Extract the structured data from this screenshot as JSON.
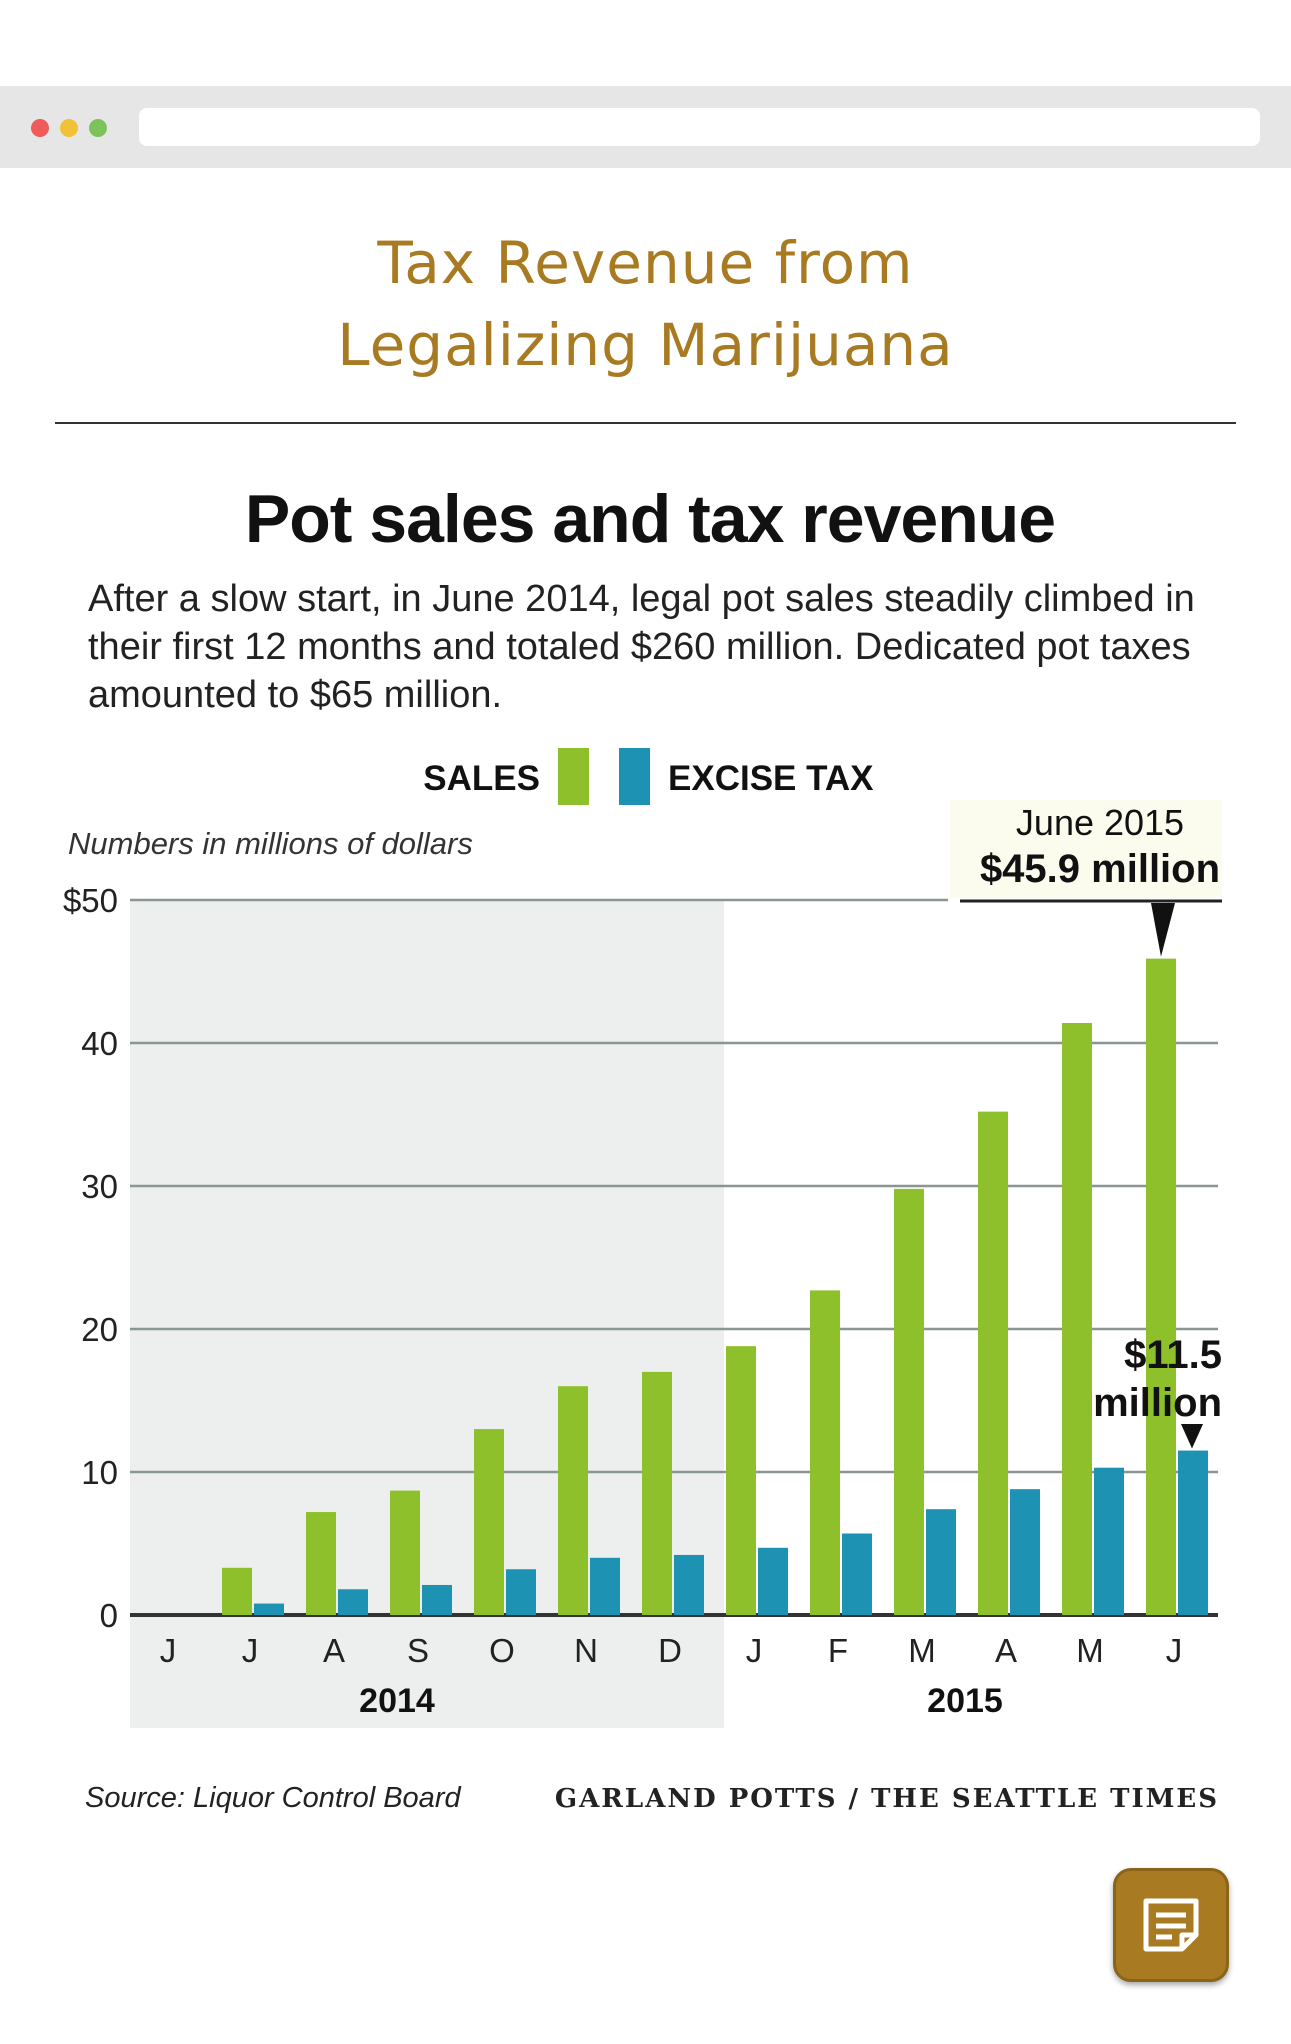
{
  "page": {
    "title": "Tax Revenue from\nLegalizing Marijuana"
  },
  "chart_data": {
    "type": "bar",
    "title": "Pot sales and tax revenue",
    "subtitle": "After a slow start, in June 2014, legal pot sales steadily climbed in their first 12 months and totaled $260 million. Dedicated pot taxes amounted to $65 million.",
    "ylabel": "Numbers in millions of dollars",
    "ylim": [
      0,
      50
    ],
    "yticks": [
      "0",
      "10",
      "20",
      "30",
      "40",
      "$50"
    ],
    "categories": [
      "J",
      "J",
      "A",
      "S",
      "O",
      "N",
      "D",
      "J",
      "F",
      "M",
      "A",
      "M",
      "J"
    ],
    "year_labels": [
      "2014",
      "2015"
    ],
    "series": [
      {
        "name": "SALES",
        "color": "#8dc02a",
        "values": [
          0,
          3.3,
          7.2,
          8.7,
          13.0,
          16.0,
          17.0,
          18.8,
          22.7,
          29.8,
          35.2,
          41.4,
          45.9
        ]
      },
      {
        "name": "EXCISE TAX",
        "color": "#1e92b2",
        "values": [
          0,
          0.8,
          1.8,
          2.1,
          3.2,
          4.0,
          4.2,
          4.7,
          5.7,
          7.4,
          8.8,
          10.3,
          11.5
        ]
      }
    ],
    "annotations": [
      {
        "label_top": "June 2015",
        "label_bottom": "$45.9 million"
      },
      {
        "label_top": "$11.5",
        "label_bottom": "million"
      }
    ],
    "grid": true,
    "legend_position": "top-center",
    "shaded_region_color": "#edeeee"
  },
  "footer": {
    "source": "Source: Liquor Control Board",
    "credit": "GARLAND POTTS / THE SEATTLE TIMES"
  },
  "icons": {
    "notes_button": "notes-icon"
  }
}
